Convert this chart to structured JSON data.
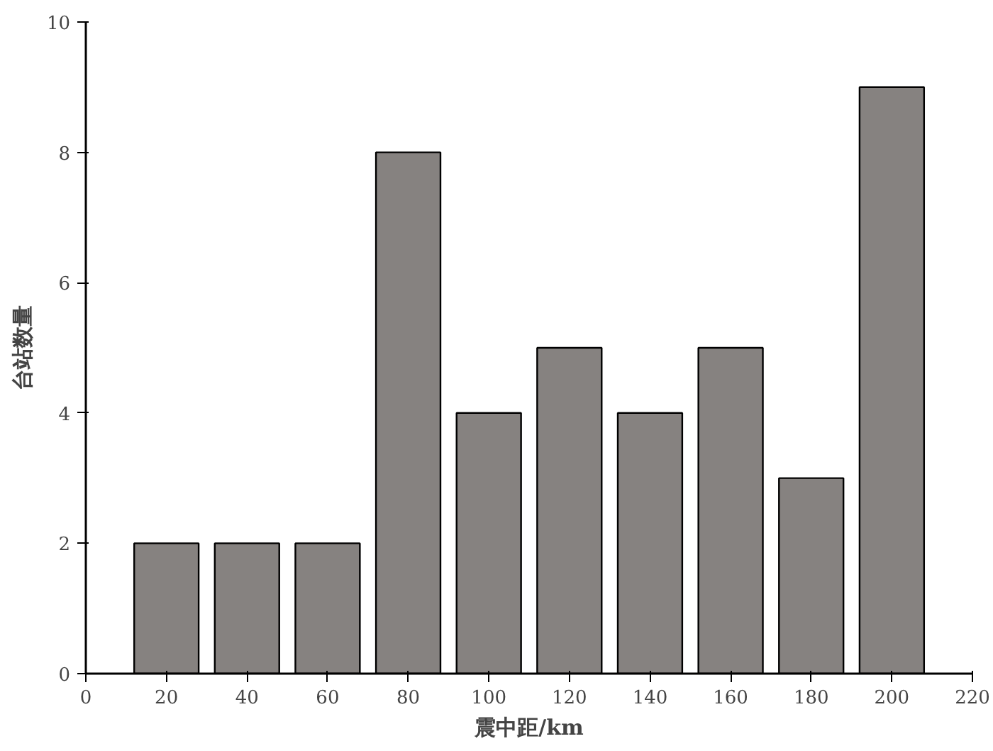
{
  "chart_data": {
    "type": "bar",
    "xlabel": "震中距/km",
    "ylabel": "台站数量",
    "x": [
      20,
      40,
      60,
      80,
      100,
      120,
      140,
      160,
      180,
      200
    ],
    "values": [
      2,
      2,
      2,
      8,
      4,
      5,
      4,
      5,
      3,
      9
    ],
    "color": "#868280",
    "xlim": [
      0,
      220
    ],
    "xticks": [
      0,
      20,
      40,
      60,
      80,
      100,
      120,
      140,
      160,
      180,
      200,
      220
    ],
    "ylim": [
      0,
      10
    ],
    "yticks": [
      0,
      2,
      4,
      6,
      8,
      10
    ],
    "grid": false
  }
}
